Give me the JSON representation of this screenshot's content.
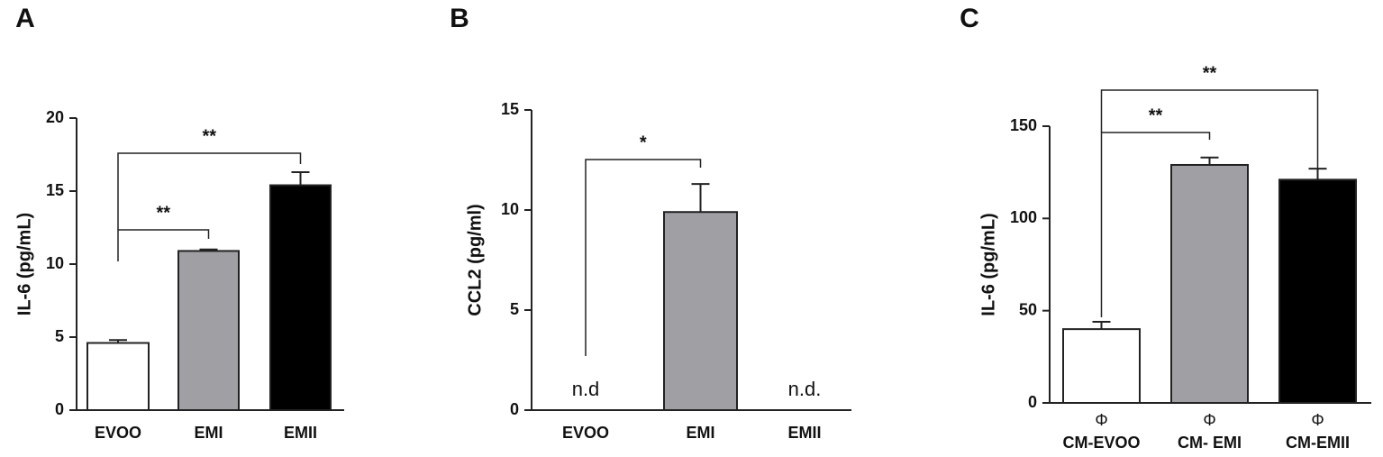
{
  "chart_data": [
    {
      "type": "bar",
      "panel": "A",
      "ylabel": "IL-6 (pg/mL)",
      "categories": [
        "EVOO",
        "EMI",
        "EMII"
      ],
      "values": [
        4.6,
        10.9,
        15.4
      ],
      "errors": [
        0.2,
        0.1,
        0.9
      ],
      "colors": [
        "#ffffff",
        "#a0a0a4",
        "#000000"
      ],
      "ylim": [
        0,
        20
      ],
      "yticks": [
        0,
        5,
        10,
        15,
        20
      ],
      "significance": [
        "**",
        "**"
      ]
    },
    {
      "type": "bar",
      "panel": "B",
      "ylabel": "CCL2 (pg/ml)",
      "categories": [
        "EVOO",
        "EMI",
        "EMII"
      ],
      "values": [
        null,
        9.9,
        null
      ],
      "errors": [
        null,
        1.4,
        null
      ],
      "value_labels": [
        "n.d",
        null,
        "n.d."
      ],
      "colors": [
        "#ffffff",
        "#a0a0a4",
        "#000000"
      ],
      "ylim": [
        0,
        15
      ],
      "yticks": [
        0,
        5,
        10,
        15
      ],
      "significance": [
        "*"
      ]
    },
    {
      "type": "bar",
      "panel": "C",
      "ylabel": "IL-6 (pg/mL)",
      "categories": [
        "CM-EVOO",
        "CM- EMI",
        "CM-EMII"
      ],
      "category_symbols": [
        "Φ",
        "Φ",
        "Φ"
      ],
      "values": [
        40,
        129,
        121
      ],
      "errors": [
        4,
        4,
        6
      ],
      "colors": [
        "#ffffff",
        "#a0a0a4",
        "#000000"
      ],
      "ylim": [
        0,
        150
      ],
      "yticks": [
        0,
        50,
        100,
        150
      ],
      "significance": [
        "**",
        "**"
      ]
    }
  ]
}
